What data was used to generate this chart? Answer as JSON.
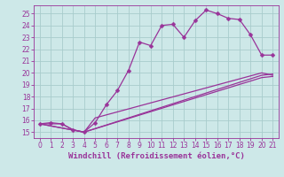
{
  "xlabel": "Windchill (Refroidissement éolien,°C)",
  "bg_color": "#cde8e8",
  "grid_color": "#a8cccc",
  "line_color": "#993399",
  "xlim": [
    -0.5,
    21.5
  ],
  "ylim": [
    14.5,
    25.7
  ],
  "xticks": [
    0,
    1,
    2,
    3,
    4,
    5,
    6,
    7,
    8,
    9,
    10,
    11,
    12,
    13,
    14,
    15,
    16,
    17,
    18,
    19,
    20,
    21
  ],
  "yticks": [
    15,
    16,
    17,
    18,
    19,
    20,
    21,
    22,
    23,
    24,
    25
  ],
  "line1_x": [
    0,
    1,
    2,
    3,
    4,
    5,
    6,
    7,
    8,
    9,
    10,
    11,
    12,
    13,
    14,
    15,
    16,
    17,
    18,
    19,
    20,
    21
  ],
  "line1_y": [
    15.7,
    15.8,
    15.7,
    15.2,
    15.0,
    15.8,
    17.3,
    18.5,
    20.2,
    22.6,
    22.3,
    24.0,
    24.1,
    23.0,
    24.4,
    25.3,
    25.0,
    24.6,
    24.5,
    23.2,
    21.5,
    21.5
  ],
  "line2_x": [
    0,
    2,
    3,
    4,
    5,
    20,
    21
  ],
  "line2_y": [
    15.7,
    15.7,
    15.2,
    15.0,
    16.2,
    20.0,
    19.8
  ],
  "line3_x": [
    0,
    4,
    20,
    21
  ],
  "line3_y": [
    15.7,
    15.0,
    19.8,
    19.9
  ],
  "line4_x": [
    0,
    4,
    20,
    21
  ],
  "line4_y": [
    15.7,
    15.0,
    19.6,
    19.7
  ],
  "marker": "D",
  "marker_size": 2.5,
  "line_width": 0.9,
  "xlabel_fontsize": 6.5,
  "tick_fontsize": 5.5
}
